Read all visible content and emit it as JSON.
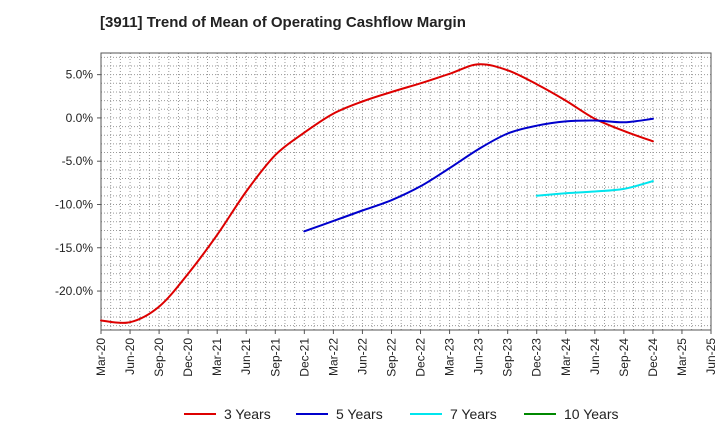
{
  "title": "[3911]  Trend of Mean of Operating Cashflow Margin",
  "chart_data": {
    "type": "line",
    "title": "[3911]  Trend of Mean of Operating Cashflow Margin",
    "xlabel": "",
    "ylabel": "",
    "x_ticks": [
      "Mar-20",
      "Jun-20",
      "Sep-20",
      "Dec-20",
      "Mar-21",
      "Jun-21",
      "Sep-21",
      "Dec-21",
      "Mar-22",
      "Jun-22",
      "Sep-22",
      "Dec-22",
      "Mar-23",
      "Jun-23",
      "Sep-23",
      "Dec-23",
      "Mar-24",
      "Jun-24",
      "Sep-24",
      "Dec-24",
      "Mar-25",
      "Jun-25"
    ],
    "y_ticks": [
      "5.0%",
      "0.0%",
      "-5.0%",
      "-10.0%",
      "-15.0%",
      "-20.0%"
    ],
    "y_tick_values": [
      5,
      0,
      -5,
      -10,
      -15,
      -20
    ],
    "ylim": [
      -24.5,
      7.5
    ],
    "grid": true,
    "legend_position": "bottom",
    "series": [
      {
        "name": "3 Years",
        "color": "#dd0000",
        "x": [
          "Mar-20",
          "Jun-20",
          "Sep-20",
          "Dec-20",
          "Mar-21",
          "Jun-21",
          "Sep-21",
          "Dec-21",
          "Mar-22",
          "Jun-22",
          "Sep-22",
          "Dec-22",
          "Mar-23",
          "Jun-23",
          "Sep-23",
          "Dec-23",
          "Mar-24",
          "Jun-24",
          "Sep-24",
          "Dec-24"
        ],
        "values": [
          -23.4,
          -23.6,
          -21.8,
          -18.0,
          -13.5,
          -8.5,
          -4.3,
          -1.7,
          0.5,
          1.9,
          3.0,
          4.0,
          5.1,
          6.2,
          5.5,
          3.9,
          2.0,
          -0.1,
          -1.5,
          -2.7
        ]
      },
      {
        "name": "5 Years",
        "color": "#0000cc",
        "x": [
          "Dec-21",
          "Mar-22",
          "Jun-22",
          "Sep-22",
          "Dec-22",
          "Mar-23",
          "Jun-23",
          "Sep-23",
          "Dec-23",
          "Mar-24",
          "Jun-24",
          "Sep-24",
          "Dec-24"
        ],
        "values": [
          -13.1,
          -11.9,
          -10.7,
          -9.5,
          -7.9,
          -5.8,
          -3.6,
          -1.8,
          -0.9,
          -0.4,
          -0.3,
          -0.5,
          -0.1
        ]
      },
      {
        "name": "7 Years",
        "color": "#00e5ee",
        "x": [
          "Dec-23",
          "Mar-24",
          "Jun-24",
          "Sep-24",
          "Dec-24"
        ],
        "values": [
          -9.0,
          -8.7,
          -8.5,
          -8.2,
          -7.3
        ]
      },
      {
        "name": "10 Years",
        "color": "#008800",
        "x": [],
        "values": []
      }
    ]
  }
}
